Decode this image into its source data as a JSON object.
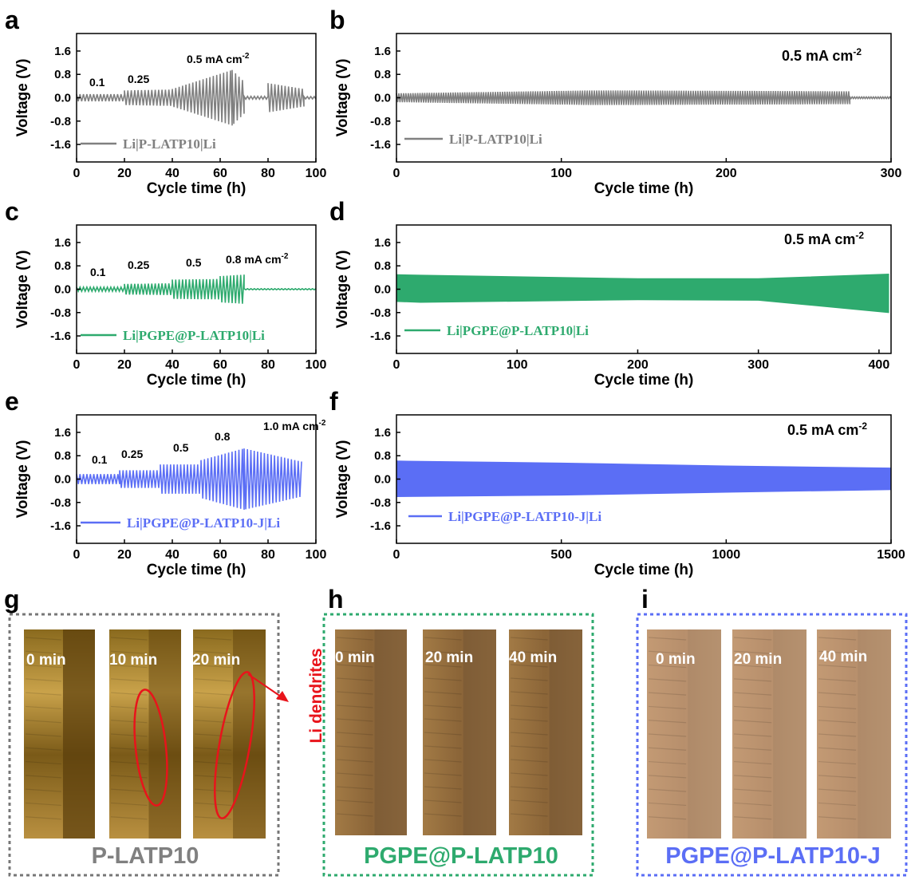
{
  "figure": {
    "charts": [
      {
        "letter": "a",
        "xlabel": "Cycle time (h)",
        "ylabel": "Voltage (V)",
        "x_ticks": [
          "0",
          "20",
          "40",
          "60",
          "80",
          "100"
        ],
        "y_ticks": [
          "1.6",
          "0.8",
          "0.0",
          "-0.8",
          "-1.6"
        ],
        "legend": "Li|P-LATP10|Li",
        "annotations": [
          "0.1",
          "0.25",
          "0.5 mA cm"
        ]
      },
      {
        "letter": "b",
        "xlabel": "Cycle time (h)",
        "ylabel": "Voltage (V)",
        "x_ticks": [
          "0",
          "100",
          "200",
          "300"
        ],
        "y_ticks": [
          "1.6",
          "0.8",
          "0.0",
          "-0.8",
          "-1.6"
        ],
        "legend": "Li|P-LATP10|Li",
        "annotations": [
          "0.5 mA cm"
        ]
      },
      {
        "letter": "c",
        "xlabel": "Cycle time (h)",
        "ylabel": "Voltage (V)",
        "x_ticks": [
          "0",
          "20",
          "40",
          "60",
          "80",
          "100"
        ],
        "y_ticks": [
          "1.6",
          "0.8",
          "0.0",
          "-0.8",
          "-1.6"
        ],
        "legend": "Li|PGPE@P-LATP10|Li",
        "annotations": [
          "0.1",
          "0.25",
          "0.5",
          "0.8 mA cm"
        ]
      },
      {
        "letter": "d",
        "xlabel": "Cycle time (h)",
        "ylabel": "Voltage (V)",
        "x_ticks": [
          "0",
          "100",
          "200",
          "300",
          "400"
        ],
        "y_ticks": [
          "1.6",
          "0.8",
          "0.0",
          "-0.8",
          "-1.6"
        ],
        "legend": "Li|PGPE@P-LATP10|Li",
        "annotations": [
          "0.5 mA cm"
        ]
      },
      {
        "letter": "e",
        "xlabel": "Cycle time (h)",
        "ylabel": "Voltage (V)",
        "x_ticks": [
          "0",
          "20",
          "40",
          "60",
          "80",
          "100"
        ],
        "y_ticks": [
          "1.6",
          "0.8",
          "0.0",
          "-0.8",
          "-1.6"
        ],
        "legend": "Li|PGPE@P-LATP10-J|Li",
        "annotations": [
          "0.1",
          "0.25",
          "0.5",
          "0.8",
          "1.0 mA cm"
        ]
      },
      {
        "letter": "f",
        "xlabel": "Cycle time (h)",
        "ylabel": "Voltage (V)",
        "x_ticks": [
          "0",
          "500",
          "1000",
          "1500"
        ],
        "y_ticks": [
          "1.6",
          "0.8",
          "0.0",
          "-0.8",
          "-1.6"
        ],
        "legend": "Li|PGPE@P-LATP10-J|Li",
        "annotations": [
          "0.5 mA cm"
        ]
      }
    ],
    "unit_superscript": "-2",
    "photos": [
      {
        "letter": "g",
        "caption": "P-LATP10",
        "times": [
          "0 min",
          "10 min",
          "20 min"
        ],
        "callout": "Li dendrites"
      },
      {
        "letter": "h",
        "caption": "PGPE@P-LATP10",
        "times": [
          "0 min",
          "20 min",
          "40 min"
        ]
      },
      {
        "letter": "i",
        "caption": "PGPE@P-LATP10-J",
        "times": [
          "0 min",
          "20 min",
          "40 min"
        ]
      }
    ]
  },
  "chart_data": [
    {
      "type": "line",
      "panel": "a",
      "xlim": [
        0,
        100
      ],
      "ylim": [
        -2.2,
        2.2
      ],
      "color": "#808080",
      "series": [
        {
          "name": "Li|P-LATP10|Li",
          "segments": [
            {
              "x0": 0,
              "x1": 20,
              "amp_start": 0.12,
              "amp_end": 0.12
            },
            {
              "x0": 20,
              "x1": 40,
              "amp_start": 0.25,
              "amp_end": 0.28
            },
            {
              "x0": 40,
              "x1": 65,
              "amp_start": 0.3,
              "amp_end": 0.95
            },
            {
              "x0": 65,
              "x1": 70,
              "amp_start": 0.95,
              "amp_end": 0.55
            },
            {
              "x0": 70,
              "x1": 80,
              "amp_start": 0.05,
              "amp_end": 0.05
            },
            {
              "x0": 80,
              "x1": 95,
              "amp_start": 0.5,
              "amp_end": 0.3
            },
            {
              "x0": 95,
              "x1": 100,
              "amp_start": 0.04,
              "amp_end": 0.04
            }
          ]
        }
      ]
    },
    {
      "type": "line",
      "panel": "b",
      "xlim": [
        0,
        300
      ],
      "ylim": [
        -2.2,
        2.2
      ],
      "color": "#808080",
      "series": [
        {
          "name": "Li|P-LATP10|Li",
          "segments": [
            {
              "x0": 0,
              "x1": 120,
              "amp_start": 0.15,
              "amp_end": 0.25
            },
            {
              "x0": 120,
              "x1": 275,
              "amp_start": 0.25,
              "amp_end": 0.22
            },
            {
              "x0": 275,
              "x1": 300,
              "amp_start": 0.03,
              "amp_end": 0.03
            }
          ]
        }
      ]
    },
    {
      "type": "line",
      "panel": "c",
      "xlim": [
        0,
        100
      ],
      "ylim": [
        -2.2,
        2.2
      ],
      "color": "#2eaa6e",
      "series": [
        {
          "name": "Li|PGPE@P-LATP10|Li",
          "segments": [
            {
              "x0": 0,
              "x1": 20,
              "amp_start": 0.07,
              "amp_end": 0.07
            },
            {
              "x0": 20,
              "x1": 40,
              "amp_start": 0.18,
              "amp_end": 0.2
            },
            {
              "x0": 40,
              "x1": 60,
              "amp_start": 0.33,
              "amp_end": 0.35
            },
            {
              "x0": 60,
              "x1": 70,
              "amp_start": 0.45,
              "amp_end": 0.5
            },
            {
              "x0": 70,
              "x1": 100,
              "amp_start": 0.02,
              "amp_end": 0.02
            }
          ]
        }
      ]
    },
    {
      "type": "area",
      "panel": "d",
      "xlim": [
        0,
        410
      ],
      "ylim": [
        -2.2,
        2.2
      ],
      "color": "#2eaa6e",
      "series": [
        {
          "name": "Li|PGPE@P-LATP10|Li",
          "upper": [
            [
              0,
              0.5
            ],
            [
              20,
              0.48
            ],
            [
              200,
              0.36
            ],
            [
              300,
              0.36
            ],
            [
              408,
              0.52
            ]
          ],
          "lower": [
            [
              0,
              -0.42
            ],
            [
              20,
              -0.45
            ],
            [
              200,
              -0.36
            ],
            [
              300,
              -0.38
            ],
            [
              408,
              -0.8
            ]
          ]
        }
      ]
    },
    {
      "type": "line",
      "panel": "e",
      "xlim": [
        0,
        100
      ],
      "ylim": [
        -2.2,
        2.2
      ],
      "color": "#5b6ef5",
      "series": [
        {
          "name": "Li|PGPE@P-LATP10-J|Li",
          "segments": [
            {
              "x0": 0,
              "x1": 18,
              "amp_start": 0.17,
              "amp_end": 0.17
            },
            {
              "x0": 18,
              "x1": 35,
              "amp_start": 0.3,
              "amp_end": 0.3
            },
            {
              "x0": 35,
              "x1": 52,
              "amp_start": 0.5,
              "amp_end": 0.5
            },
            {
              "x0": 52,
              "x1": 70,
              "amp_start": 0.65,
              "amp_end": 1.05
            },
            {
              "x0": 70,
              "x1": 94,
              "amp_start": 1.05,
              "amp_end": 0.6
            }
          ]
        }
      ]
    },
    {
      "type": "area",
      "panel": "f",
      "xlim": [
        0,
        1500
      ],
      "ylim": [
        -2.2,
        2.2
      ],
      "color": "#5b6ef5",
      "series": [
        {
          "name": "Li|PGPE@P-LATP10-J|Li",
          "upper": [
            [
              0,
              0.62
            ],
            [
              500,
              0.55
            ],
            [
              1000,
              0.45
            ],
            [
              1500,
              0.38
            ]
          ],
          "lower": [
            [
              0,
              -0.6
            ],
            [
              500,
              -0.55
            ],
            [
              1000,
              -0.45
            ],
            [
              1500,
              -0.36
            ]
          ]
        }
      ]
    }
  ]
}
